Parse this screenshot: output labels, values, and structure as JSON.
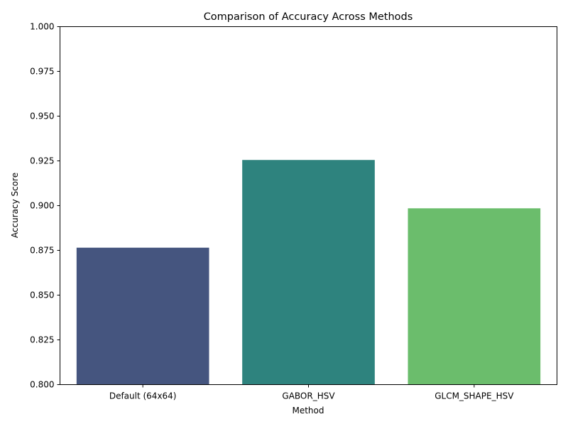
{
  "chart_data": {
    "type": "bar",
    "title": "Comparison of Accuracy Across Methods",
    "xlabel": "Method",
    "ylabel": "Accuracy Score",
    "categories": [
      "Default (64x64)",
      "GABOR_HSV",
      "GLCM_SHAPE_HSV"
    ],
    "values": [
      0.8765,
      0.9255,
      0.8985
    ],
    "colors": [
      "#45557f",
      "#2e837e",
      "#6bbd6c"
    ],
    "ylim": [
      0.8,
      1.0
    ],
    "yticks": [
      0.8,
      0.825,
      0.85,
      0.875,
      0.9,
      0.925,
      0.95,
      0.975,
      1.0
    ],
    "ytick_labels": [
      "0.800",
      "0.825",
      "0.850",
      "0.875",
      "0.900",
      "0.925",
      "0.950",
      "0.975",
      "1.000"
    ],
    "grid": false,
    "legend": "none"
  }
}
